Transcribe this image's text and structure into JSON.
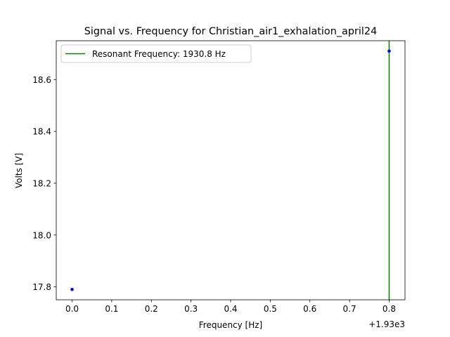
{
  "chart_data": {
    "type": "scatter",
    "title": "Signal vs. Frequency for Christian_air1_exhalation_april24",
    "xlabel": "Frequency [Hz]",
    "ylabel": "Volts [V]",
    "x_offset_label": "+1.93e3",
    "xlim": [
      -0.04,
      0.84
    ],
    "ylim": [
      17.75,
      18.75
    ],
    "x_ticks": [
      0.0,
      0.1,
      0.2,
      0.3,
      0.4,
      0.5,
      0.6,
      0.7,
      0.8
    ],
    "x_tick_labels": [
      "0.0",
      "0.1",
      "0.2",
      "0.3",
      "0.4",
      "0.5",
      "0.6",
      "0.7",
      "0.8"
    ],
    "y_ticks": [
      17.8,
      18.0,
      18.2,
      18.4,
      18.6
    ],
    "y_tick_labels": [
      "17.8",
      "18.0",
      "18.2",
      "18.4",
      "18.6"
    ],
    "grid": false,
    "legend_position": "upper-left",
    "series": [
      {
        "color": "#0000ff",
        "marker": "dot",
        "points": [
          {
            "x": 0.0,
            "y": 17.79
          },
          {
            "x": 0.8,
            "y": 18.71
          }
        ]
      }
    ],
    "vlines": [
      {
        "name": "Resonant Frequency: 1930.8 Hz",
        "x": 0.8,
        "color": "#008000"
      }
    ]
  }
}
